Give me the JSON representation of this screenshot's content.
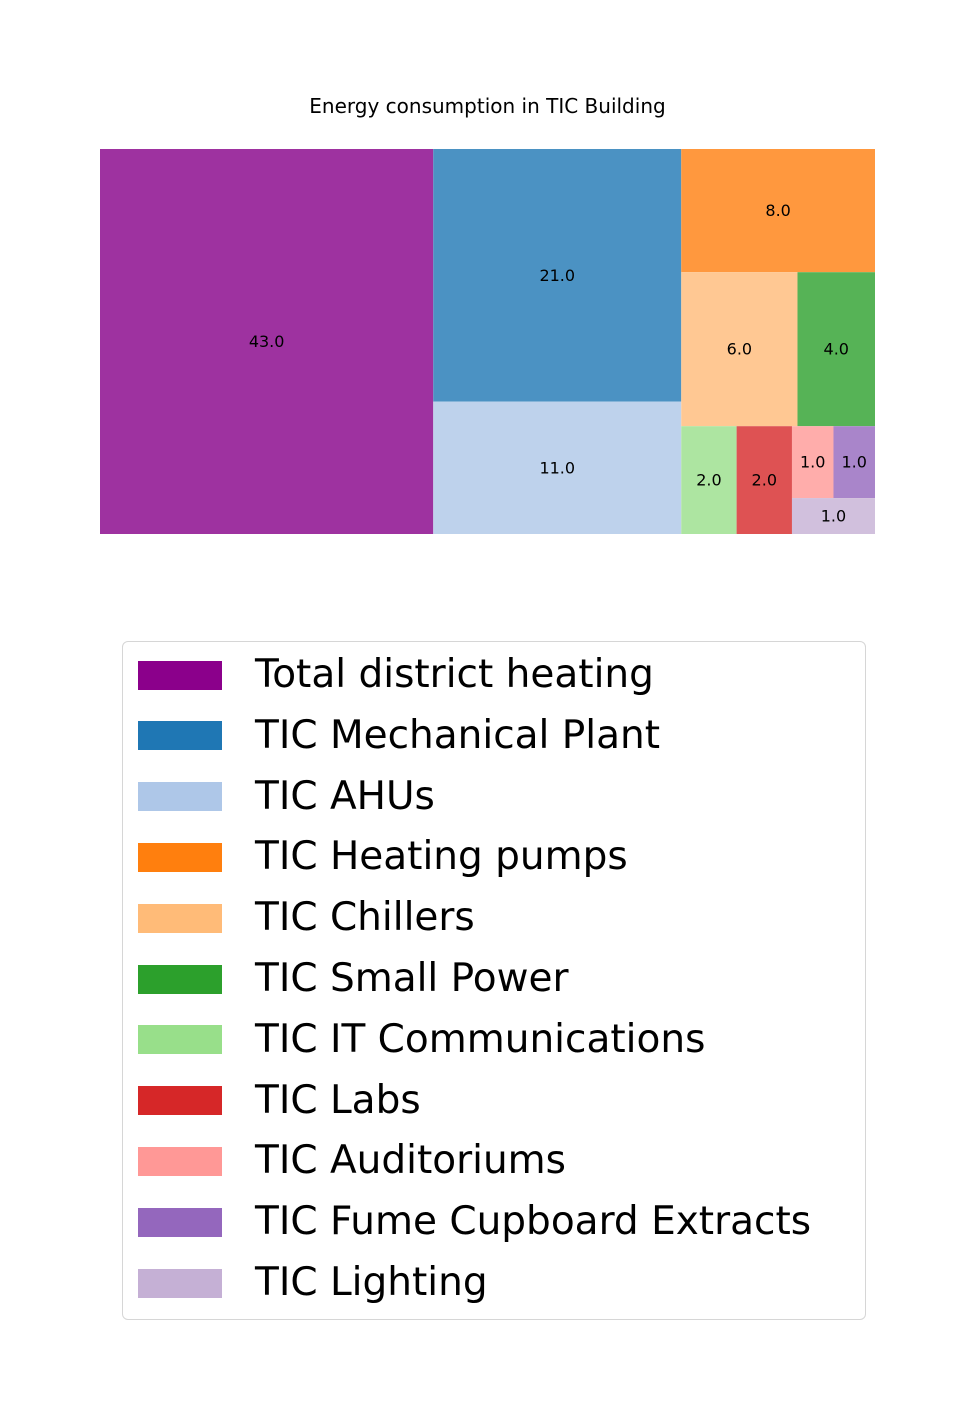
{
  "chart_data": {
    "type": "treemap",
    "title": "Energy consumption in TIC Building",
    "items": [
      {
        "name": "Total district heating",
        "value": 43.0,
        "label": "43.0",
        "color": "#8b008b",
        "fill": "#9e32a0"
      },
      {
        "name": "TIC Mechanical Plant",
        "value": 21.0,
        "label": "21.0",
        "color": "#1f77b4",
        "fill": "#4b92c3"
      },
      {
        "name": "TIC AHUs",
        "value": 11.0,
        "label": "11.0",
        "color": "#aec7e8",
        "fill": "#bed2ec"
      },
      {
        "name": "TIC Heating pumps",
        "value": 8.0,
        "label": "8.0",
        "color": "#ff7f0e",
        "fill": "#ff983e"
      },
      {
        "name": "TIC Chillers",
        "value": 6.0,
        "label": "6.0",
        "color": "#ffbb78",
        "fill": "#ffc893"
      },
      {
        "name": "TIC Small Power",
        "value": 4.0,
        "label": "4.0",
        "color": "#2ca02c",
        "fill": "#56b356"
      },
      {
        "name": "TIC IT Communications",
        "value": 2.0,
        "label": "2.0",
        "color": "#98df8a",
        "fill": "#ade5a1"
      },
      {
        "name": "TIC Labs",
        "value": 2.0,
        "label": "2.0",
        "color": "#d62728",
        "fill": "#de5253"
      },
      {
        "name": "TIC Auditoriums",
        "value": 1.0,
        "label": "1.0",
        "color": "#ff9896",
        "fill": "#ffadab"
      },
      {
        "name": "TIC Fume Cupboard Extracts",
        "value": 1.0,
        "label": "1.0",
        "color": "#9467bd",
        "fill": "#a985ca"
      },
      {
        "name": "TIC Lighting",
        "value": 1.0,
        "label": "1.0",
        "color": "#c5b0d5",
        "fill": "#d1c0dd"
      }
    ],
    "legend": {
      "placement": "below"
    }
  }
}
